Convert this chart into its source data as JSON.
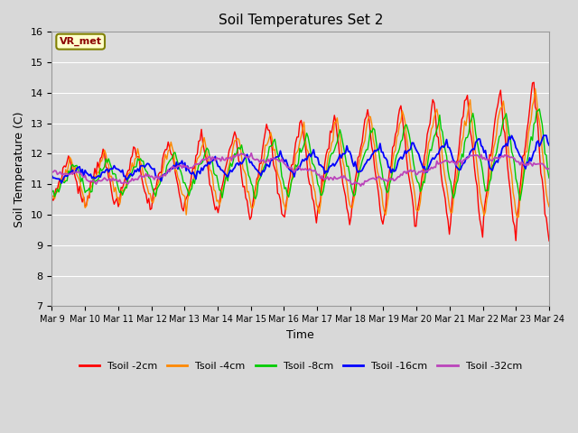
{
  "title": "Soil Temperatures Set 2",
  "xlabel": "Time",
  "ylabel": "Soil Temperature (C)",
  "ylim": [
    7.0,
    16.0
  ],
  "yticks": [
    7.0,
    8.0,
    9.0,
    10.0,
    11.0,
    12.0,
    13.0,
    14.0,
    15.0,
    16.0
  ],
  "days": 15,
  "start_day": 9,
  "pts_per_day": 24,
  "colors": {
    "Tsoil -2cm": "#ff0000",
    "Tsoil -4cm": "#ff8800",
    "Tsoil -8cm": "#00cc00",
    "Tsoil -16cm": "#0000ff",
    "Tsoil -32cm": "#bb44bb"
  },
  "legend_label": "VR_met",
  "fig_bg": "#d8d8d8",
  "ax_bg": "#dcdcdc",
  "grid_color": "#ffffff",
  "linewidth": 1.0
}
